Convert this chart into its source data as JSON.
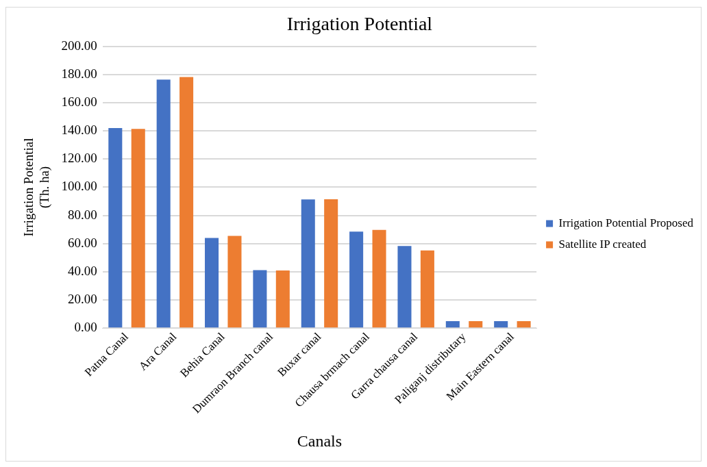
{
  "chart_data": {
    "type": "bar",
    "title": "Irrigation Potential",
    "xlabel": "Canals",
    "ylabel": "Irrigation Potential\n(Th. ha)",
    "categories": [
      "Patna Canal",
      "Ara Canal",
      "Behia Canal",
      "Dumraon Branch canal",
      "Buxar canal",
      "Chausa brmach canal",
      "Garra chausa canal",
      "Paliganj distributary",
      "Main Eastern canal"
    ],
    "series": [
      {
        "name": "Irrigation Potential Proposed",
        "color": "#4472c4",
        "values": [
          142,
          176.4,
          64,
          41.2,
          91.3,
          68.5,
          58.3,
          5,
          5
        ]
      },
      {
        "name": "Satellite IP created",
        "color": "#ed7d31",
        "values": [
          141.4,
          178.2,
          65.5,
          41,
          91.5,
          69.7,
          55.1,
          5,
          5
        ]
      }
    ],
    "ylim": [
      0,
      200
    ],
    "yticks": [
      {
        "value": 0,
        "label": "0.00"
      },
      {
        "value": 20,
        "label": "20.00"
      },
      {
        "value": 40,
        "label": "40.00"
      },
      {
        "value": 60,
        "label": "60.00"
      },
      {
        "value": 80,
        "label": "80.00"
      },
      {
        "value": 100,
        "label": "100.00"
      },
      {
        "value": 120,
        "label": "120.00"
      },
      {
        "value": 140,
        "label": "140.00"
      },
      {
        "value": 160,
        "label": "160.00"
      },
      {
        "value": 180,
        "label": "180.00"
      },
      {
        "value": 200,
        "label": "200.00"
      }
    ],
    "grid": "y",
    "legend": "right"
  }
}
